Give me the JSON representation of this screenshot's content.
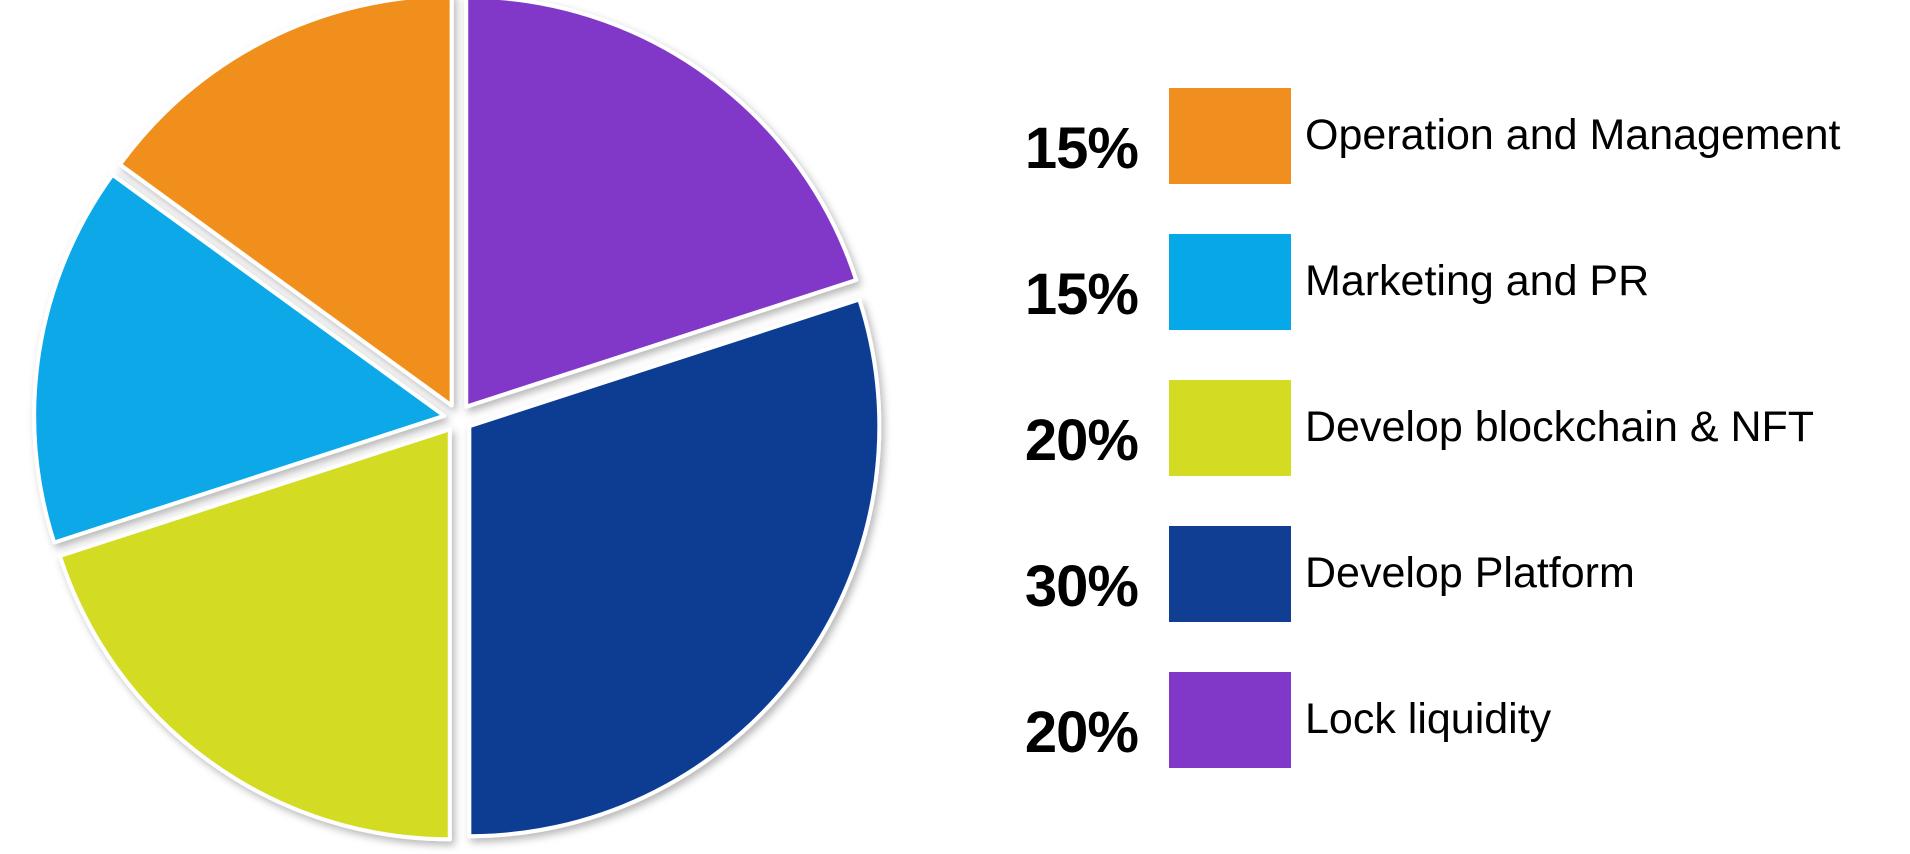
{
  "chart_data": {
    "type": "pie",
    "title": "",
    "slices": [
      {
        "label": "Lock liquidity",
        "percent_label": "20%",
        "value": 20,
        "color": "#8137c8"
      },
      {
        "label": "Develop Platform",
        "percent_label": "30%",
        "value": 30,
        "color": "#0f3e93"
      },
      {
        "label": "Develop blockchain & NFT",
        "percent_label": "20%",
        "value": 20,
        "color": "#d3dc23"
      },
      {
        "label": "Marketing and PR",
        "percent_label": "15%",
        "value": 15,
        "color": "#07a8e8"
      },
      {
        "label": "Operation and Management",
        "percent_label": "15%",
        "value": 15,
        "color": "#f08f1f"
      }
    ],
    "legend": [
      {
        "percent": "15%",
        "label": "Operation and Management",
        "color": "#f08f1f"
      },
      {
        "percent": "15%",
        "label": "Marketing and PR",
        "color": "#07a8e8"
      },
      {
        "percent": "20%",
        "label": "Develop blockchain & NFT",
        "color": "#d3dc23"
      },
      {
        "percent": "30%",
        "label": "Develop Platform",
        "color": "#0f3e93"
      },
      {
        "percent": "20%",
        "label": "Lock liquidity",
        "color": "#8137c8"
      }
    ],
    "legend_placement": "right",
    "exploded": true
  }
}
